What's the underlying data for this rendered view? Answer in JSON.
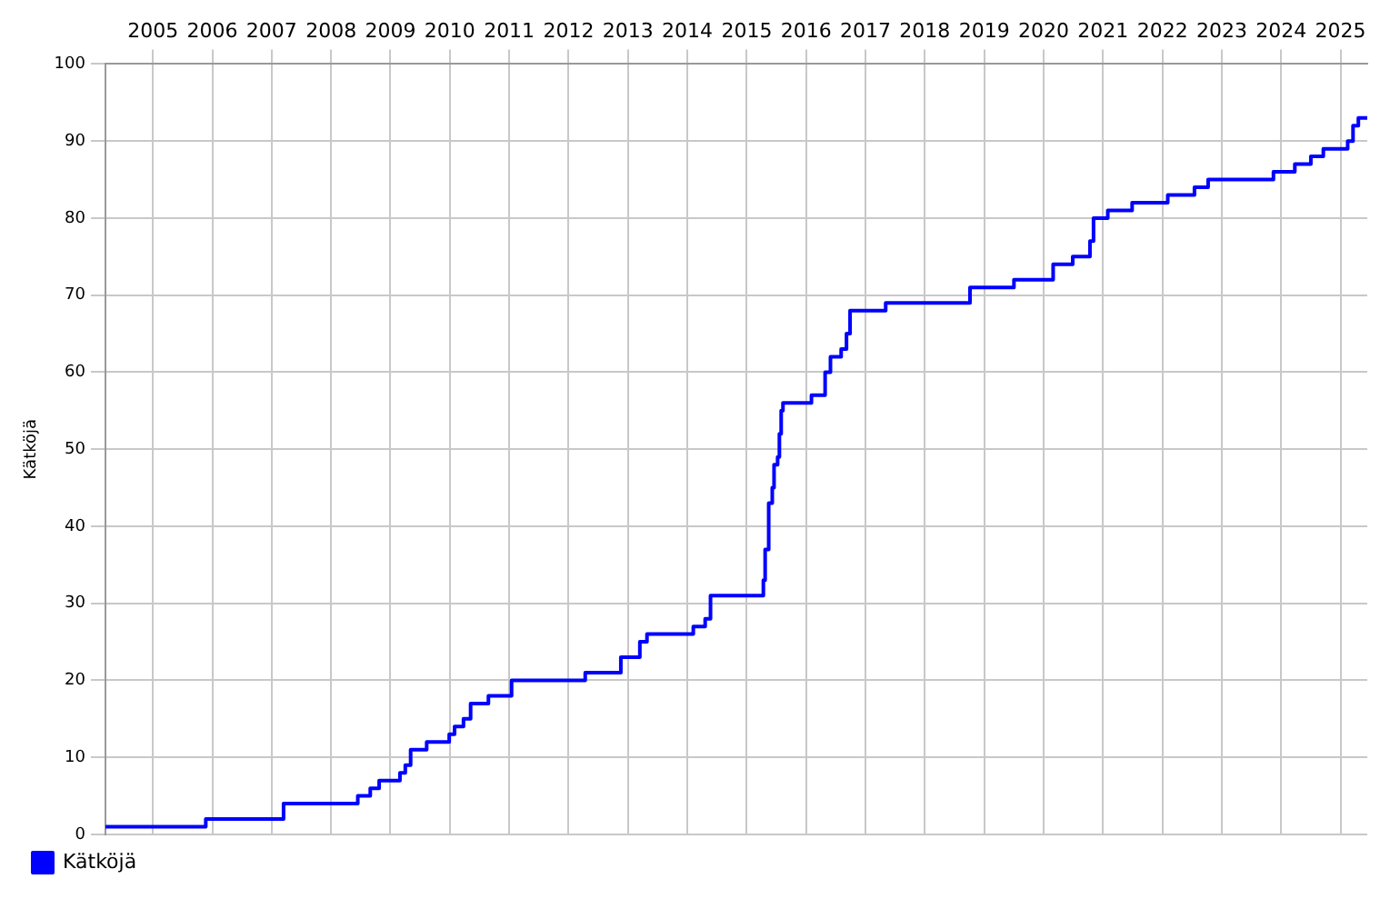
{
  "chart_data": {
    "type": "step",
    "ylabel": "Kätköjä",
    "legend": "bottom left",
    "grid": true,
    "x": [
      2004.7,
      2006.39,
      2007.7,
      2008.95,
      2009.16,
      2009.31,
      2009.66,
      2009.75,
      2009.84,
      2010.11,
      2010.49,
      2010.58,
      2010.73,
      2010.85,
      2011.15,
      2011.54,
      2012.78,
      2013.38,
      2013.7,
      2013.82,
      2014.6,
      2014.8,
      2014.89,
      2015.78,
      2015.81,
      2015.87,
      2015.93,
      2015.96,
      2016.02,
      2016.05,
      2016.08,
      2016.11,
      2016.59,
      2016.82,
      2016.91,
      2017.09,
      2017.18,
      2017.24,
      2017.84,
      2019.26,
      2020.0,
      2020.66,
      2020.99,
      2021.28,
      2021.34,
      2021.58,
      2021.99,
      2022.59,
      2023.04,
      2023.27,
      2024.37,
      2024.73,
      2025.0,
      2025.21,
      2025.62,
      2025.71,
      2025.8,
      2025.95
    ],
    "series": [
      {
        "name": "Kätköjä",
        "color": "#0000ff",
        "values": [
          1,
          2,
          4,
          5,
          6,
          7,
          8,
          9,
          11,
          12,
          13,
          14,
          15,
          17,
          18,
          20,
          21,
          23,
          25,
          26,
          27,
          28,
          31,
          33,
          37,
          43,
          45,
          48,
          49,
          52,
          55,
          56,
          57,
          60,
          62,
          63,
          65,
          68,
          69,
          71,
          72,
          74,
          75,
          77,
          80,
          81,
          82,
          83,
          84,
          85,
          86,
          87,
          88,
          89,
          90,
          92,
          93,
          93
        ]
      }
    ],
    "xlim": [
      2004.7,
      2025.95
    ],
    "xticks": [
      {
        "value": 2005.5,
        "label": "2005"
      },
      {
        "value": 2006.5,
        "label": "2006"
      },
      {
        "value": 2007.5,
        "label": "2007"
      },
      {
        "value": 2008.5,
        "label": "2008"
      },
      {
        "value": 2009.5,
        "label": "2009"
      },
      {
        "value": 2010.5,
        "label": "2010"
      },
      {
        "value": 2011.5,
        "label": "2011"
      },
      {
        "value": 2012.5,
        "label": "2012"
      },
      {
        "value": 2013.5,
        "label": "2013"
      },
      {
        "value": 2014.5,
        "label": "2014"
      },
      {
        "value": 2015.5,
        "label": "2015"
      },
      {
        "value": 2016.5,
        "label": "2016"
      },
      {
        "value": 2017.5,
        "label": "2017"
      },
      {
        "value": 2018.5,
        "label": "2018"
      },
      {
        "value": 2019.5,
        "label": "2019"
      },
      {
        "value": 2020.5,
        "label": "2020"
      },
      {
        "value": 2021.5,
        "label": "2021"
      },
      {
        "value": 2022.5,
        "label": "2022"
      },
      {
        "value": 2023.5,
        "label": "2023"
      },
      {
        "value": 2024.5,
        "label": "2024"
      },
      {
        "value": 2025.5,
        "label": "2025"
      }
    ],
    "ylim": [
      0,
      100
    ],
    "yticks": [
      0,
      10,
      20,
      30,
      40,
      50,
      60,
      70,
      80,
      90,
      100
    ]
  }
}
